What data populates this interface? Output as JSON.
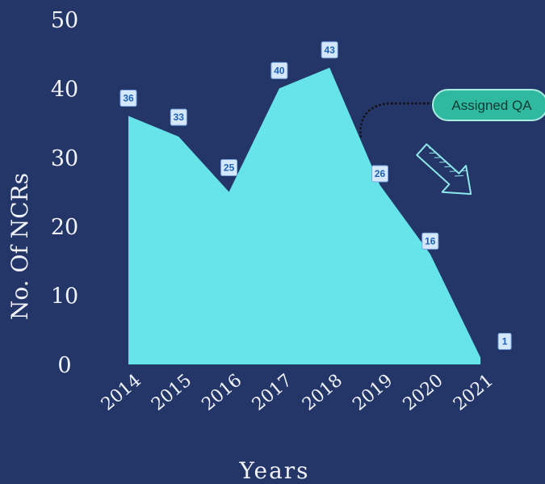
{
  "chart_data": {
    "type": "area",
    "categories": [
      "2014",
      "2015",
      "2016",
      "2017",
      "2018",
      "2019",
      "2020",
      "2021"
    ],
    "values": [
      36,
      33,
      25,
      40,
      43,
      26,
      16,
      1
    ],
    "xlabel": "Years",
    "ylabel": "No. Of NCRs",
    "ylim": [
      0,
      50
    ],
    "yticks": [
      0,
      10,
      20,
      30,
      40,
      50
    ],
    "grid": false,
    "colors": {
      "background": "#243568",
      "area": "#66e4e9",
      "text": "#f1f4fb",
      "data_label_bg": "#d5e7fb",
      "data_label_text": "#1e63b8",
      "annotation_bg": "#2fb9a0",
      "annotation_border": "#a9ece0",
      "arrow": "#8ee8ea"
    },
    "annotation": {
      "text": "Assigned QA",
      "points_to": "2018"
    }
  }
}
